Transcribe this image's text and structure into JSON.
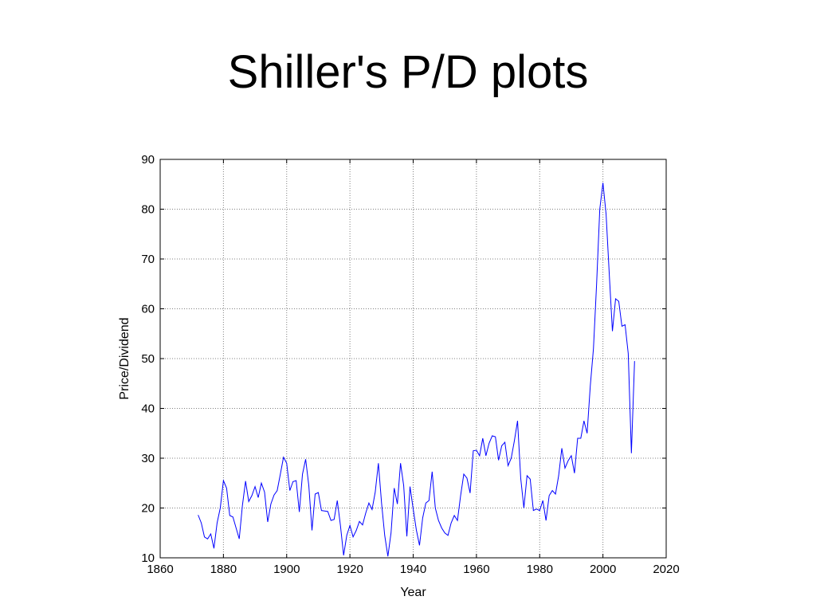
{
  "slide": {
    "title": "Shiller's P/D plots"
  },
  "chart_data": {
    "type": "line",
    "title": "",
    "xlabel": "Year",
    "ylabel": "Price/Dividend",
    "xlim": [
      1860,
      2020
    ],
    "ylim": [
      10,
      90
    ],
    "xticks": [
      1860,
      1880,
      1900,
      1920,
      1940,
      1960,
      1980,
      2000,
      2020
    ],
    "yticks": [
      10,
      20,
      30,
      40,
      50,
      60,
      70,
      80,
      90
    ],
    "grid": true,
    "line_color": "#0000ff",
    "series": [
      {
        "x": [
          1872,
          1873,
          1874,
          1875,
          1876,
          1877,
          1878,
          1879,
          1880,
          1881,
          1882,
          1883,
          1884,
          1885,
          1886,
          1887,
          1888,
          1889,
          1890,
          1891,
          1892,
          1893,
          1894,
          1895,
          1896,
          1897,
          1898,
          1899,
          1900,
          1901,
          1902,
          1903,
          1904,
          1905,
          1906,
          1907,
          1908,
          1909,
          1910,
          1911,
          1912,
          1913,
          1914,
          1915,
          1916,
          1917,
          1918,
          1919,
          1920,
          1921,
          1922,
          1923,
          1924,
          1925,
          1926,
          1927,
          1928,
          1929,
          1930,
          1931,
          1932,
          1933,
          1934,
          1935,
          1936,
          1937,
          1938,
          1939,
          1940,
          1941,
          1942,
          1943,
          1944,
          1945,
          1946,
          1947,
          1948,
          1949,
          1950,
          1951,
          1952,
          1953,
          1954,
          1955,
          1956,
          1957,
          1958,
          1959,
          1960,
          1961,
          1962,
          1963,
          1964,
          1965,
          1966,
          1967,
          1968,
          1969,
          1970,
          1971,
          1972,
          1973,
          1974,
          1975,
          1976,
          1977,
          1978,
          1979,
          1980,
          1981,
          1982,
          1983,
          1984,
          1985,
          1986,
          1987,
          1988,
          1989,
          1990,
          1991,
          1992,
          1993,
          1994,
          1995,
          1996,
          1997,
          1998,
          1999,
          2000,
          2001,
          2002,
          2003,
          2004,
          2005,
          2006,
          2007,
          2008,
          2009,
          2010
        ],
        "values": [
          18.6,
          17.0,
          14.2,
          13.8,
          14.8,
          11.9,
          17.0,
          20.0,
          25.5,
          24.0,
          18.5,
          18.2,
          16.0,
          13.8,
          20.5,
          25.4,
          21.3,
          22.5,
          24.3,
          22.1,
          25.0,
          23.2,
          17.2,
          20.8,
          22.6,
          23.5,
          26.8,
          30.2,
          29.0,
          23.5,
          25.3,
          25.5,
          19.2,
          26.8,
          29.8,
          24.5,
          15.5,
          22.8,
          23.1,
          19.5,
          19.4,
          19.3,
          17.5,
          17.7,
          21.5,
          16.5,
          10.5,
          14.5,
          16.5,
          14.2,
          15.5,
          17.3,
          16.6,
          19.0,
          21.0,
          19.7,
          23.2,
          29.0,
          21.0,
          14.5,
          10.3,
          15.0,
          24.0,
          20.8,
          29.0,
          24.5,
          14.3,
          24.3,
          19.8,
          15.6,
          12.5,
          18.0,
          21.0,
          21.5,
          27.3,
          20.0,
          17.5,
          16.0,
          15.0,
          14.5,
          17.0,
          18.5,
          17.5,
          22.5,
          26.8,
          26.0,
          23.0,
          31.5,
          31.6,
          30.5,
          34.0,
          30.5,
          33.0,
          34.5,
          34.3,
          29.6,
          32.5,
          33.2,
          28.5,
          30.0,
          33.5,
          37.5,
          26.0,
          20.0,
          26.5,
          25.8,
          19.5,
          19.8,
          19.5,
          21.5,
          17.5,
          22.5,
          23.5,
          22.8,
          26.5,
          32.0,
          28.0,
          29.5,
          30.5,
          27.0,
          34.0,
          34.0,
          37.5,
          35.0,
          44.5,
          52.0,
          65.0,
          80.0,
          85.3,
          79.0,
          67.0,
          55.5,
          62.0,
          61.5,
          56.5,
          56.8,
          51.0,
          31.0,
          49.5
        ]
      }
    ]
  }
}
